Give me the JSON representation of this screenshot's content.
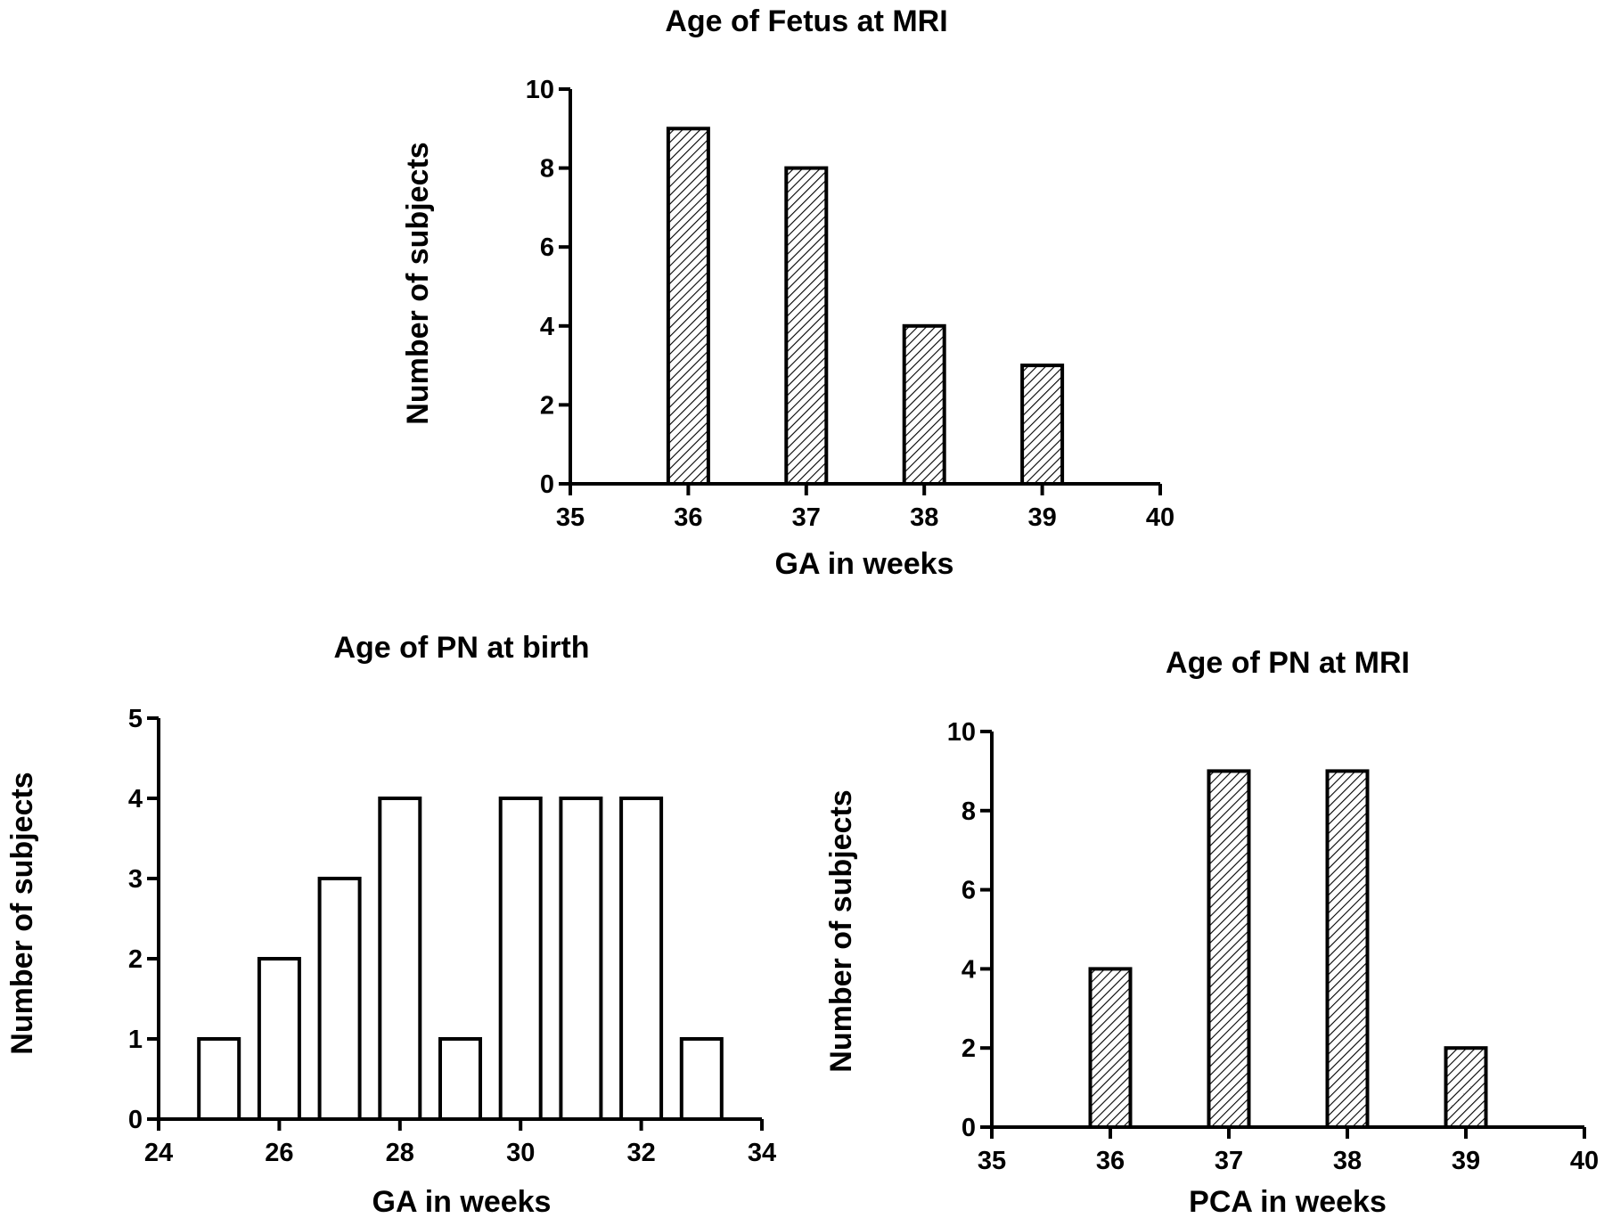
{
  "chart_data": [
    {
      "type": "bar",
      "title": "Age of Fetus at MRI",
      "xlabel": "GA in weeks",
      "ylabel": "Number of subjects",
      "xlim": [
        35,
        40
      ],
      "ylim": [
        0,
        10
      ],
      "x_ticks": [
        35,
        36,
        37,
        38,
        39,
        40
      ],
      "y_ticks": [
        0,
        2,
        4,
        6,
        8,
        10
      ],
      "bar_fill": "hatched",
      "x": [
        36,
        37,
        38,
        39
      ],
      "values": [
        9,
        8,
        4,
        3
      ]
    },
    {
      "type": "bar",
      "title": "Age of PN at birth",
      "xlabel": "GA in weeks",
      "ylabel": "Number of subjects",
      "xlim": [
        24,
        34
      ],
      "ylim": [
        0,
        5
      ],
      "x_ticks": [
        24,
        26,
        28,
        30,
        32,
        34
      ],
      "y_ticks": [
        0,
        1,
        2,
        3,
        4,
        5
      ],
      "bar_fill": "open",
      "x": [
        25,
        26,
        27,
        28,
        29,
        30,
        31,
        32,
        33
      ],
      "values": [
        1,
        2,
        3,
        4,
        1,
        4,
        4,
        4,
        1
      ]
    },
    {
      "type": "bar",
      "title": "Age of PN at MRI",
      "xlabel": "PCA in weeks",
      "ylabel": "Number of subjects",
      "xlim": [
        35,
        40
      ],
      "ylim": [
        0,
        10
      ],
      "x_ticks": [
        35,
        36,
        37,
        38,
        39,
        40
      ],
      "y_ticks": [
        0,
        2,
        4,
        6,
        8,
        10
      ],
      "bar_fill": "hatched",
      "x": [
        36,
        37,
        38,
        39
      ],
      "values": [
        4,
        9,
        9,
        2
      ]
    }
  ]
}
